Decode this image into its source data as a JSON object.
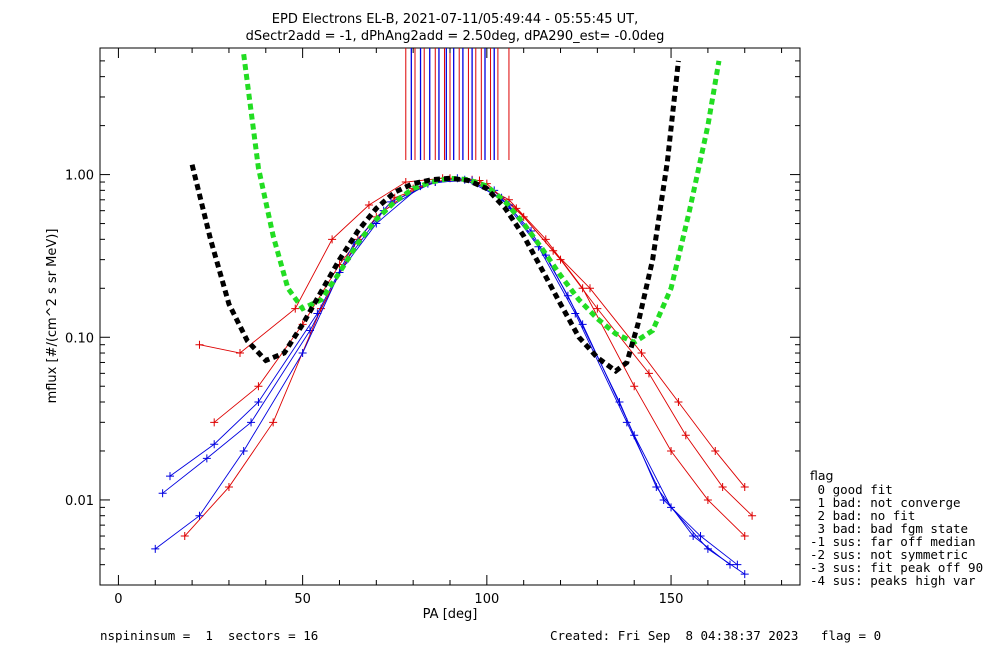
{
  "chart_data": {
    "type": "line",
    "title": "EPD Electrons EL-B, 2021-07-11/05:49:44 - 05:55:45 UT,",
    "subtitle": "dSectr2add = -1, dPhAng2add = 2.50deg, dPA290_est=  -0.0deg",
    "xlabel": "PA [deg]",
    "ylabel": "mflux [#/(cm^2 s sr MeV)]",
    "xlim": [
      -5,
      185
    ],
    "ylim": [
      0.003,
      6
    ],
    "yscale": "log",
    "x_ticks": [
      0,
      50,
      100,
      150
    ],
    "y_ticks": [
      {
        "value": 0.01,
        "label": "0.01"
      },
      {
        "value": 0.1,
        "label": "0.10"
      },
      {
        "value": 1.0,
        "label": "1.00"
      }
    ],
    "grid": false,
    "colors": {
      "red": "#dd0000",
      "blue": "#0000e0",
      "black": "#000000",
      "green": "#22dd22"
    },
    "fit_black": {
      "x": [
        20,
        25,
        30,
        35,
        40,
        45,
        50,
        55,
        60,
        65,
        70,
        75,
        80,
        85,
        90,
        95,
        100,
        105,
        110,
        115,
        120,
        125,
        130,
        135,
        138,
        141,
        145,
        149,
        152
      ],
      "y": [
        1.15,
        0.4,
        0.16,
        0.095,
        0.072,
        0.08,
        0.12,
        0.19,
        0.3,
        0.45,
        0.62,
        0.78,
        0.88,
        0.93,
        0.95,
        0.92,
        0.82,
        0.62,
        0.42,
        0.26,
        0.16,
        0.1,
        0.075,
        0.062,
        0.07,
        0.12,
        0.3,
        1.2,
        5.0
      ]
    },
    "fit_green": {
      "x": [
        34,
        38,
        42,
        46,
        50,
        55,
        60,
        65,
        70,
        75,
        80,
        85,
        90,
        95,
        100,
        105,
        110,
        115,
        120,
        125,
        130,
        135,
        140,
        145,
        150,
        155,
        160,
        163
      ],
      "y": [
        5.5,
        1.1,
        0.42,
        0.2,
        0.15,
        0.17,
        0.25,
        0.38,
        0.53,
        0.68,
        0.82,
        0.9,
        0.95,
        0.93,
        0.85,
        0.68,
        0.5,
        0.35,
        0.24,
        0.17,
        0.13,
        0.105,
        0.093,
        0.11,
        0.2,
        0.6,
        2.0,
        5.0
      ]
    },
    "top_marks_red": [
      78,
      80.5,
      83,
      86,
      88.5,
      90,
      92.5,
      95,
      97,
      98.5,
      101,
      103,
      106
    ],
    "top_marks_blue": [
      79.5,
      82,
      84.5,
      87,
      89,
      91,
      93.5,
      96,
      99.5,
      102
    ],
    "scatter_series": [
      {
        "color": "red",
        "x": [
          22,
          33,
          48,
          58,
          68,
          78,
          88,
          98,
          108,
          118,
          128,
          142,
          152,
          162,
          170
        ],
        "y": [
          0.09,
          0.08,
          0.15,
          0.4,
          0.65,
          0.9,
          0.95,
          0.92,
          0.62,
          0.34,
          0.2,
          0.08,
          0.04,
          0.02,
          0.012
        ]
      },
      {
        "color": "blue",
        "x": [
          12,
          24,
          36,
          52,
          62,
          72,
          84,
          94,
          104,
          114,
          124,
          138,
          148,
          158,
          168
        ],
        "y": [
          0.011,
          0.018,
          0.03,
          0.11,
          0.3,
          0.6,
          0.88,
          0.93,
          0.72,
          0.36,
          0.14,
          0.03,
          0.01,
          0.006,
          0.004
        ]
      },
      {
        "color": "red",
        "x": [
          18,
          30,
          42,
          55,
          65,
          75,
          86,
          96,
          106,
          116,
          126,
          140,
          150,
          160,
          170
        ],
        "y": [
          0.006,
          0.012,
          0.03,
          0.15,
          0.4,
          0.72,
          0.9,
          0.93,
          0.7,
          0.4,
          0.2,
          0.05,
          0.02,
          0.01,
          0.006
        ]
      },
      {
        "color": "blue",
        "x": [
          10,
          22,
          34,
          50,
          60,
          70,
          82,
          92,
          102,
          112,
          122,
          136,
          146,
          156,
          166
        ],
        "y": [
          0.005,
          0.008,
          0.02,
          0.08,
          0.25,
          0.5,
          0.85,
          0.95,
          0.8,
          0.45,
          0.18,
          0.04,
          0.012,
          0.006,
          0.004
        ]
      },
      {
        "color": "red",
        "x": [
          26,
          38,
          50,
          60,
          70,
          80,
          90,
          100,
          110,
          120,
          130,
          144,
          154,
          164,
          172
        ],
        "y": [
          0.03,
          0.05,
          0.12,
          0.28,
          0.55,
          0.82,
          0.95,
          0.88,
          0.55,
          0.3,
          0.15,
          0.06,
          0.025,
          0.012,
          0.008
        ]
      },
      {
        "color": "blue",
        "x": [
          14,
          26,
          38,
          54,
          64,
          74,
          86,
          96,
          106,
          116,
          126,
          140,
          150,
          160,
          170
        ],
        "y": [
          0.014,
          0.022,
          0.04,
          0.14,
          0.38,
          0.68,
          0.9,
          0.92,
          0.65,
          0.32,
          0.12,
          0.025,
          0.009,
          0.005,
          0.0035
        ]
      }
    ]
  },
  "legend": {
    "title": "flag",
    "items": [
      " 0 good fit",
      " 1 bad: not converge",
      " 2 bad: no fit",
      " 3 bad: bad fgm state",
      "-1 sus: far off median",
      "-2 sus: not symmetric",
      "-3 sus: fit peak off 90",
      "-4 sus: peaks high var"
    ]
  },
  "footer": {
    "left": "nspininsum =  1  sectors = 16",
    "right": "Created: Fri Sep  8 04:38:37 2023   flag = 0"
  }
}
